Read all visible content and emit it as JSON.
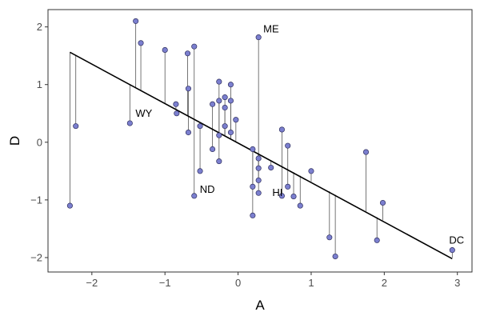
{
  "chart_data": {
    "type": "scatter",
    "xlabel": "A",
    "ylabel": "D",
    "xlim": [
      -2.6,
      3.2
    ],
    "ylim": [
      -2.25,
      2.3
    ],
    "xticks": [
      -2,
      -1,
      0,
      1,
      2,
      3
    ],
    "yticks": [
      -2,
      -1,
      0,
      1,
      2
    ],
    "grid": false,
    "colors": {
      "point_fill": "#7b7fcf",
      "point_stroke": "#2f2f5e",
      "line": "#000000",
      "segment": "#555555",
      "axis": "#333333"
    },
    "regression_line": {
      "x": [
        -2.3,
        2.93
      ],
      "y": [
        1.56,
        -2.02
      ]
    },
    "points": [
      {
        "x": -2.3,
        "y": -1.1,
        "fit": 1.56
      },
      {
        "x": -2.22,
        "y": 0.28,
        "fit": 1.51
      },
      {
        "x": -1.48,
        "y": 0.33,
        "fit": 1.0
      },
      {
        "x": -1.4,
        "y": 2.1,
        "fit": 0.95
      },
      {
        "x": -1.33,
        "y": 1.72,
        "fit": 0.9
      },
      {
        "x": -1.0,
        "y": 1.6,
        "fit": 0.67
      },
      {
        "x": -0.85,
        "y": 0.66,
        "fit": 0.57
      },
      {
        "x": -0.84,
        "y": 0.5,
        "fit": 0.57
      },
      {
        "x": -0.69,
        "y": 1.54,
        "fit": 0.46
      },
      {
        "x": -0.68,
        "y": 0.93,
        "fit": 0.46
      },
      {
        "x": -0.68,
        "y": 0.17,
        "fit": 0.46
      },
      {
        "x": -0.6,
        "y": 1.66,
        "fit": 0.4
      },
      {
        "x": -0.6,
        "y": -0.93,
        "fit": 0.4
      },
      {
        "x": -0.52,
        "y": 0.28,
        "fit": 0.35
      },
      {
        "x": -0.52,
        "y": -0.5,
        "fit": 0.35
      },
      {
        "x": -0.35,
        "y": 0.66,
        "fit": 0.23
      },
      {
        "x": -0.35,
        "y": -0.12,
        "fit": 0.23
      },
      {
        "x": -0.26,
        "y": 1.05,
        "fit": 0.17
      },
      {
        "x": -0.26,
        "y": 0.72,
        "fit": 0.17
      },
      {
        "x": -0.26,
        "y": 0.12,
        "fit": 0.17
      },
      {
        "x": -0.26,
        "y": -0.33,
        "fit": 0.17
      },
      {
        "x": -0.18,
        "y": 0.78,
        "fit": 0.12
      },
      {
        "x": -0.18,
        "y": 0.6,
        "fit": 0.12
      },
      {
        "x": -0.18,
        "y": 0.28,
        "fit": 0.12
      },
      {
        "x": -0.1,
        "y": 1.0,
        "fit": 0.07
      },
      {
        "x": -0.1,
        "y": 0.72,
        "fit": 0.07
      },
      {
        "x": -0.1,
        "y": 0.17,
        "fit": 0.07
      },
      {
        "x": -0.03,
        "y": 0.39,
        "fit": 0.02
      },
      {
        "x": 0.2,
        "y": -0.12,
        "fit": -0.14
      },
      {
        "x": 0.2,
        "y": -0.77,
        "fit": -0.14
      },
      {
        "x": 0.2,
        "y": -1.27,
        "fit": -0.14
      },
      {
        "x": 0.28,
        "y": 1.82,
        "fit": -0.19
      },
      {
        "x": 0.28,
        "y": -0.28,
        "fit": -0.19
      },
      {
        "x": 0.28,
        "y": -0.45,
        "fit": -0.19
      },
      {
        "x": 0.28,
        "y": -0.66,
        "fit": -0.19
      },
      {
        "x": 0.28,
        "y": -0.88,
        "fit": -0.19
      },
      {
        "x": 0.45,
        "y": -0.44,
        "fit": -0.31
      },
      {
        "x": 0.6,
        "y": 0.22,
        "fit": -0.41
      },
      {
        "x": 0.6,
        "y": -0.93,
        "fit": -0.41
      },
      {
        "x": 0.68,
        "y": -0.06,
        "fit": -0.47
      },
      {
        "x": 0.68,
        "y": -0.77,
        "fit": -0.47
      },
      {
        "x": 0.76,
        "y": -0.94,
        "fit": -0.52
      },
      {
        "x": 0.85,
        "y": -1.1,
        "fit": -0.58
      },
      {
        "x": 1.0,
        "y": -0.5,
        "fit": -0.68
      },
      {
        "x": 1.25,
        "y": -1.65,
        "fit": -0.85
      },
      {
        "x": 1.33,
        "y": -1.98,
        "fit": -0.91
      },
      {
        "x": 1.75,
        "y": -0.17,
        "fit": -1.2
      },
      {
        "x": 1.9,
        "y": -1.7,
        "fit": -1.3
      },
      {
        "x": 1.98,
        "y": -1.05,
        "fit": -1.35
      },
      {
        "x": 2.93,
        "y": -1.87,
        "fit": -2.0
      }
    ],
    "annotations": [
      {
        "label": "ME",
        "x": 0.28,
        "y": 1.82
      },
      {
        "label": "WY",
        "x": -1.48,
        "y": 0.33
      },
      {
        "label": "ND",
        "x": -0.6,
        "y": -0.93
      },
      {
        "label": "HI",
        "x": 0.6,
        "y": -0.93
      },
      {
        "label": "DC",
        "x": 2.93,
        "y": -1.87
      }
    ]
  }
}
